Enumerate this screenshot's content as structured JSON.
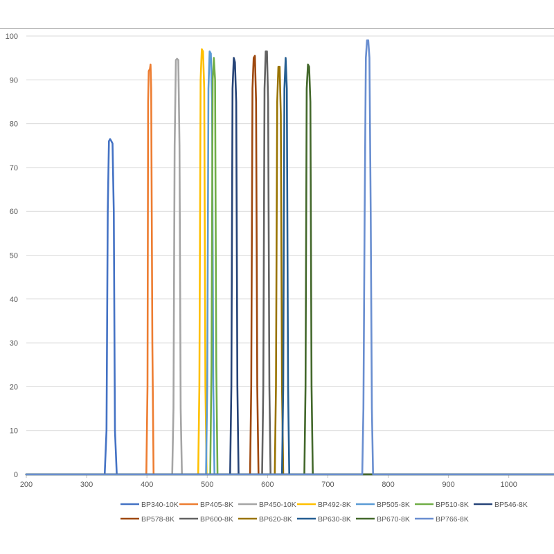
{
  "chart_data": {
    "type": "line",
    "title": "",
    "xlabel": "",
    "ylabel": "",
    "xlim": [
      200,
      1075
    ],
    "ylim": [
      0,
      100
    ],
    "xticks": [
      200,
      300,
      400,
      500,
      600,
      700,
      800,
      900,
      1000
    ],
    "yticks": [
      0,
      10,
      20,
      30,
      40,
      50,
      60,
      70,
      80,
      90,
      100
    ],
    "grid": "horizontal",
    "legend_position": "bottom",
    "series": [
      {
        "name": "BP340-10K",
        "color": "#4472c4",
        "x": [
          200,
          330,
          333,
          335,
          337,
          339,
          341,
          343,
          345,
          347,
          350,
          1075
        ],
        "y": [
          0,
          0,
          10,
          60,
          76,
          76.5,
          76,
          75.5,
          60,
          10,
          0,
          0
        ]
      },
      {
        "name": "BP405-8K",
        "color": "#ed7d31",
        "x": [
          200,
          399,
          401,
          402,
          403,
          405,
          406,
          407,
          409,
          411,
          1075
        ],
        "y": [
          0,
          0,
          20,
          85,
          92,
          92.5,
          93.5,
          88,
          30,
          0,
          0
        ]
      },
      {
        "name": "BP450-10K",
        "color": "#a5a5a5",
        "x": [
          200,
          442,
          444,
          446,
          448,
          450,
          452,
          454,
          456,
          458,
          1075
        ],
        "y": [
          0,
          0,
          15,
          75,
          94.5,
          94.8,
          94.5,
          75,
          15,
          0,
          0
        ]
      },
      {
        "name": "BP492-8K",
        "color": "#ffc000",
        "x": [
          200,
          485,
          487,
          489,
          491,
          493,
          495,
          497,
          499,
          1075
        ],
        "y": [
          0,
          0,
          20,
          90,
          97,
          96.5,
          88,
          20,
          0,
          0
        ]
      },
      {
        "name": "BP505-8K",
        "color": "#5b9bd5",
        "x": [
          200,
          498,
          500,
          502,
          504,
          506,
          508,
          510,
          512,
          1075
        ],
        "y": [
          0,
          0,
          20,
          88,
          96.5,
          96,
          85,
          20,
          0,
          0
        ]
      },
      {
        "name": "BP510-8K",
        "color": "#70ad47",
        "x": [
          200,
          505,
          507,
          509,
          511,
          513,
          515,
          517,
          1075
        ],
        "y": [
          0,
          0,
          25,
          90,
          95,
          90,
          25,
          0,
          0
        ]
      },
      {
        "name": "BP546-8K",
        "color": "#264478",
        "x": [
          200,
          538,
          540,
          542,
          544,
          546,
          548,
          550,
          552,
          1075
        ],
        "y": [
          0,
          0,
          20,
          88,
          95,
          94,
          85,
          20,
          0,
          0
        ]
      },
      {
        "name": "BP578-8K",
        "color": "#9e480e",
        "x": [
          200,
          571,
          573,
          575,
          577,
          579,
          581,
          583,
          585,
          1075
        ],
        "y": [
          0,
          0,
          20,
          88,
          95,
          95.5,
          85,
          20,
          0,
          0
        ]
      },
      {
        "name": "BP600-8K",
        "color": "#636363",
        "x": [
          200,
          591,
          593,
          595,
          597,
          599,
          601,
          603,
          605,
          1075
        ],
        "y": [
          0,
          0,
          20,
          88,
          96.5,
          96.5,
          85,
          20,
          0,
          0
        ]
      },
      {
        "name": "BP620-8K",
        "color": "#997300",
        "x": [
          200,
          612,
          614,
          616,
          618,
          620,
          622,
          624,
          626,
          1075
        ],
        "y": [
          0,
          0,
          20,
          85,
          93,
          93,
          82,
          20,
          0,
          0
        ]
      },
      {
        "name": "BP630-8K",
        "color": "#255e91",
        "x": [
          200,
          624,
          626,
          628,
          630,
          632,
          634,
          636,
          1075
        ],
        "y": [
          0,
          0,
          20,
          88,
          95,
          88,
          20,
          0,
          0
        ]
      },
      {
        "name": "BP670-8K",
        "color": "#43682b",
        "x": [
          200,
          661,
          663,
          665,
          667,
          669,
          671,
          673,
          675,
          1075
        ],
        "y": [
          0,
          0,
          20,
          88,
          93.5,
          93,
          85,
          20,
          0,
          0
        ]
      },
      {
        "name": "BP766-8K",
        "color": "#698ed0",
        "x": [
          200,
          757,
          759,
          761,
          763,
          765,
          767,
          769,
          771,
          773,
          775,
          1075
        ],
        "y": [
          0,
          0,
          15,
          60,
          95,
          99,
          99,
          95,
          60,
          15,
          0,
          0
        ]
      }
    ]
  }
}
